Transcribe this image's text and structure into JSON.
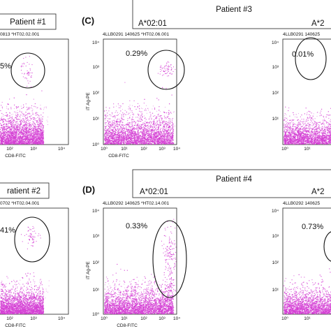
{
  "figure": {
    "panels": {
      "A": {
        "patient_label": "Patient #1",
        "sample_header": "0813 *HT02.02.001",
        "percent": "5%"
      },
      "B": {
        "patient_label": "ratient #2",
        "sample_header": "0702 *HT02.04.001",
        "percent": "41%"
      },
      "C": {
        "letter": "(C)",
        "patient_label": "Patient #3",
        "allele_left": "A*02:01",
        "sample_header_1": "4LLB0291 140625 *HT02.06.001",
        "percent_1": "0.29%",
        "sample_header_2": "4LLB0291 140625",
        "percent_2": "0.01%",
        "allele_right": "A*2"
      },
      "D": {
        "letter": "(D)",
        "patient_label": "Patient #4",
        "allele_left": "A*02:01",
        "sample_header_1": "4LLB0292 140625 *HT02.14.001",
        "percent_1": "0.33%",
        "sample_header_2": "4LLB0292 140625",
        "percent_2": "0.73%",
        "allele_right": "A*2"
      }
    },
    "axes": {
      "x_label": "CD8-FITC",
      "y_label": "iT Ag-PE",
      "x_ticks": [
        "10⁰",
        "10¹",
        "10²",
        "10³",
        "10⁴"
      ],
      "y_ticks": [
        "10⁰",
        "10¹",
        "10²",
        "10³",
        "10⁴"
      ],
      "y_mid": "10²"
    },
    "colors": {
      "events": "#d43fd4",
      "gate": "#111111",
      "frame": "#222222"
    }
  },
  "chart_data": [
    {
      "type": "scatter",
      "panel": "A",
      "xlabel": "CD8-FITC",
      "ylabel": "",
      "xscale": "log",
      "yscale": "log",
      "xlim": [
        1,
        10000
      ],
      "ylim": [
        1,
        10000
      ],
      "gate_percent": 5,
      "negative_cluster": {
        "x": [
          1,
          300
        ],
        "y": [
          1,
          3
        ]
      },
      "gated_cluster": {
        "x_center": 30,
        "y_center": 400
      }
    },
    {
      "type": "scatter",
      "panel": "C-1",
      "xlabel": "CD8-FITC",
      "ylabel": "iT Ag-PE",
      "xscale": "log",
      "yscale": "log",
      "xlim": [
        1,
        10000
      ],
      "ylim": [
        1,
        10000
      ],
      "gate_percent": 0.29,
      "negative_cluster": {
        "x": [
          1,
          300
        ],
        "y": [
          1,
          3
        ]
      },
      "gated_cluster": {
        "x_center": 200,
        "y_center": 800
      }
    },
    {
      "type": "scatter",
      "panel": "C-2",
      "xlabel": "",
      "ylabel": "",
      "xscale": "log",
      "yscale": "log",
      "xlim": [
        1,
        10000
      ],
      "ylim": [
        1,
        10000
      ],
      "gate_percent": 0.01
    },
    {
      "type": "scatter",
      "panel": "B",
      "xlabel": "CD8-FITC",
      "ylabel": "",
      "xscale": "log",
      "yscale": "log",
      "xlim": [
        1,
        10000
      ],
      "ylim": [
        1,
        10000
      ],
      "gate_percent": 41,
      "negative_cluster": {
        "x": [
          1,
          300
        ],
        "y": [
          1,
          3
        ]
      },
      "gated_cluster": {
        "x_center": 40,
        "y_center": 400
      }
    },
    {
      "type": "scatter",
      "panel": "D-1",
      "xlabel": "CD8-FITC",
      "ylabel": "iT Ag-PE",
      "xscale": "log",
      "yscale": "log",
      "xlim": [
        1,
        10000
      ],
      "ylim": [
        1,
        10000
      ],
      "gate_percent": 0.33,
      "negative_cluster": {
        "x": [
          1,
          300
        ],
        "y": [
          1,
          3
        ]
      },
      "gated_cluster": {
        "x_center": 200,
        "y_center": 300
      }
    },
    {
      "type": "scatter",
      "panel": "D-2",
      "xlabel": "",
      "ylabel": "",
      "xscale": "log",
      "yscale": "log",
      "xlim": [
        1,
        10000
      ],
      "ylim": [
        1,
        10000
      ],
      "gate_percent": 0.73
    }
  ]
}
